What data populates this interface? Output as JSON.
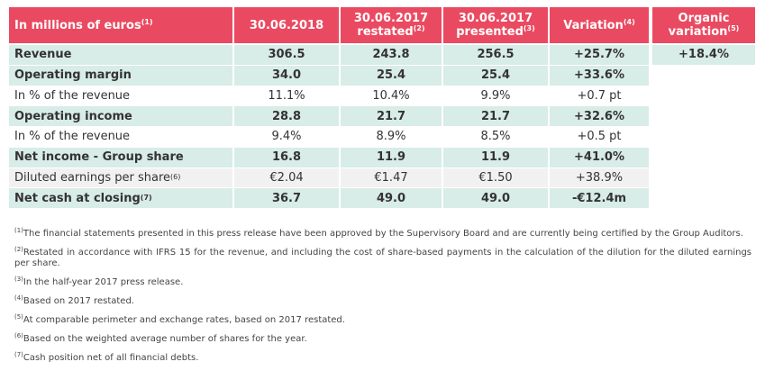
{
  "table": {
    "header": [
      {
        "lines": [
          "In millions of euros"
        ],
        "sup": "(1)"
      },
      {
        "lines": [
          "30.06.2018"
        ]
      },
      {
        "lines": [
          "30.06.2017",
          "restated"
        ],
        "sup": "(2)"
      },
      {
        "lines": [
          "30.06.2017",
          "presented"
        ],
        "sup": "(3)"
      },
      {
        "lines": [
          "Variation"
        ],
        "sup": "(4)"
      },
      {
        "lines": [
          "Organic",
          "variation"
        ],
        "sup": "(5)"
      }
    ],
    "rows": [
      {
        "label": "Revenue",
        "values": [
          "306.5",
          "243.8",
          "256.5",
          "+25.7%"
        ],
        "organic": "+18.4%"
      },
      {
        "label": "Operating margin",
        "values": [
          "34.0",
          "25.4",
          "25.4",
          "+33.6%"
        ]
      },
      {
        "label": "In % of the revenue",
        "values": [
          "11.1%",
          "10.4%",
          "9.9%",
          "+0.7 pt"
        ]
      },
      {
        "label": "Operating income",
        "values": [
          "28.8",
          "21.7",
          "21.7",
          "+32.6%"
        ]
      },
      {
        "label": "In % of the revenue",
        "values": [
          "9.4%",
          "8.9%",
          "8.5%",
          "+0.5 pt"
        ]
      },
      {
        "label": "Net income - Group share",
        "values": [
          "16.8",
          "11.9",
          "11.9",
          "+41.0%"
        ]
      },
      {
        "label": "Diluted earnings per share",
        "sup": "(6)",
        "values": [
          "€2.04",
          "€1.47",
          "€1.50",
          "+38.9%"
        ]
      },
      {
        "label": "Net cash at closing",
        "sup": "(7)",
        "values": [
          "36.7",
          "49.0",
          "49.0",
          "-€12.4m"
        ]
      }
    ]
  },
  "footnotes": [
    {
      "sup": "(1)",
      "text": "The financial statements presented in this press release have been approved by the Supervisory Board and are currently being certified by the Group Auditors."
    },
    {
      "sup": "(2)",
      "text": "Restated in accordance with IFRS 15 for the revenue, and including the cost of share-based payments in the calculation of the dilution for the diluted earnings per share."
    },
    {
      "sup": "(3)",
      "text": "In the half-year 2017 press release."
    },
    {
      "sup": "(4)",
      "text": "Based on 2017 restated."
    },
    {
      "sup": "(5)",
      "text": "At comparable perimeter and exchange rates, based on 2017 restated."
    },
    {
      "sup": "(6)",
      "text": "Based on the weighted average number of shares for the year."
    },
    {
      "sup": "(7)",
      "text": "Cash position net of all financial debts."
    }
  ]
}
